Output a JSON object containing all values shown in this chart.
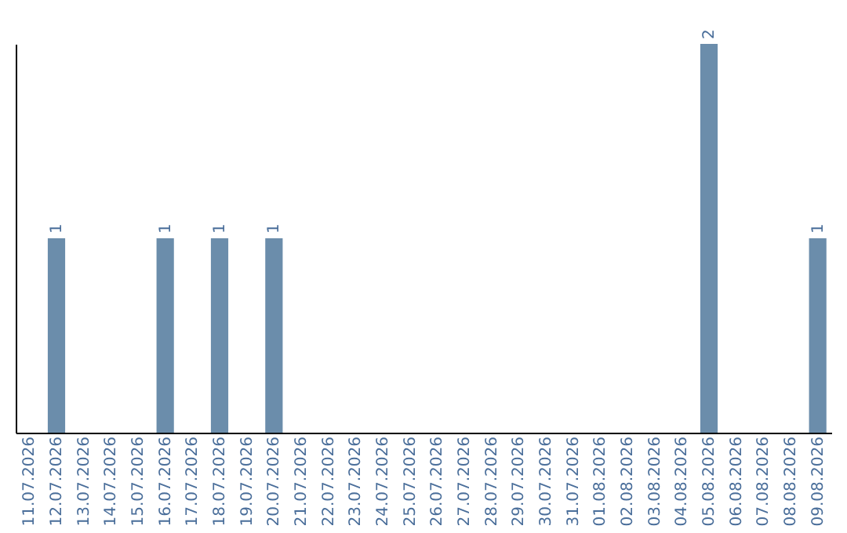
{
  "chart_data": {
    "type": "bar",
    "categories": [
      "11.07.2026",
      "12.07.2026",
      "13.07.2026",
      "14.07.2026",
      "15.07.2026",
      "16.07.2026",
      "17.07.2026",
      "18.07.2026",
      "19.07.2026",
      "20.07.2026",
      "21.07.2026",
      "22.07.2026",
      "23.07.2026",
      "24.07.2026",
      "25.07.2026",
      "26.07.2026",
      "27.07.2026",
      "28.07.2026",
      "29.07.2026",
      "30.07.2026",
      "31.07.2026",
      "01.08.2026",
      "02.08.2026",
      "03.08.2026",
      "04.08.2026",
      "05.08.2026",
      "06.08.2026",
      "07.08.2026",
      "08.08.2026",
      "09.08.2026"
    ],
    "values": [
      0,
      1,
      0,
      0,
      0,
      1,
      0,
      1,
      0,
      1,
      0,
      0,
      0,
      0,
      0,
      0,
      0,
      0,
      0,
      0,
      0,
      0,
      0,
      0,
      0,
      2,
      0,
      0,
      0,
      1
    ],
    "value_labels": [
      null,
      "1",
      null,
      null,
      null,
      "1",
      null,
      "1",
      null,
      "1",
      null,
      null,
      null,
      null,
      null,
      null,
      null,
      null,
      null,
      null,
      null,
      null,
      null,
      null,
      null,
      "2",
      null,
      null,
      null,
      "1"
    ],
    "color": "#6b8dab",
    "tick_labels": "x"
  }
}
